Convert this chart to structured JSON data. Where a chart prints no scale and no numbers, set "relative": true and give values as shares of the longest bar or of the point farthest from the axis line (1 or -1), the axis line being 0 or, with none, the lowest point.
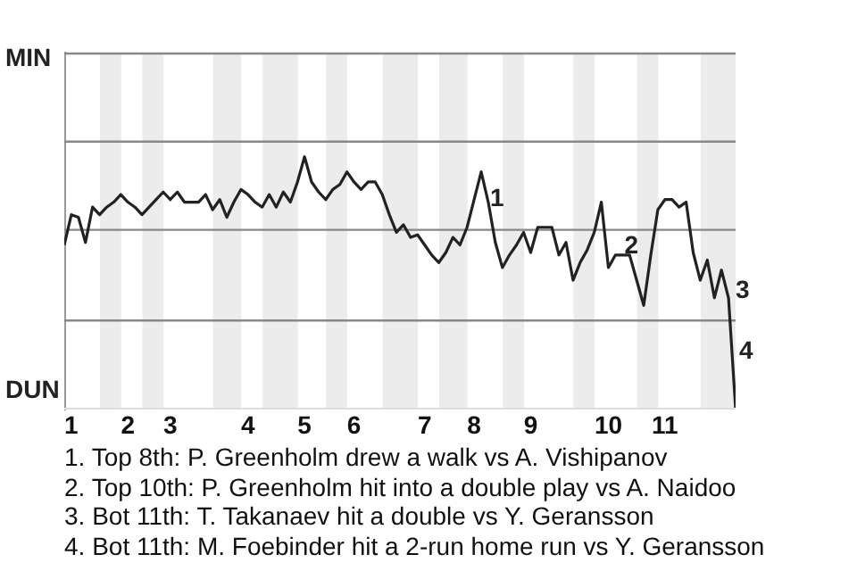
{
  "chart_data": {
    "type": "line",
    "relative": true,
    "categories": [
      null,
      "1",
      null,
      null,
      null,
      null,
      null,
      null,
      null,
      "2",
      null,
      null,
      null,
      null,
      null,
      "3",
      null,
      null,
      null,
      null,
      null,
      null,
      null,
      null,
      null,
      null,
      "4",
      null,
      null,
      null,
      null,
      null,
      null,
      null,
      "5",
      null,
      null,
      null,
      null,
      null,
      null,
      "6",
      null,
      null,
      null,
      null,
      null,
      null,
      null,
      null,
      null,
      "7",
      null,
      null,
      null,
      null,
      null,
      null,
      "8",
      null,
      null,
      null,
      null,
      null,
      null,
      null,
      "9",
      null,
      null,
      null,
      null,
      null,
      null,
      null,
      null,
      null,
      null,
      "10",
      null,
      null,
      null,
      null,
      null,
      null,
      null,
      "11",
      null,
      null,
      null,
      null,
      null,
      null,
      null,
      null,
      null,
      null
    ],
    "series": [
      {
        "color": "#222222",
        "values": [
          0.65,
          0.77,
          0.76,
          0.66,
          0.8,
          0.77,
          0.8,
          0.82,
          0.85,
          0.82,
          0.8,
          0.77,
          0.8,
          0.83,
          0.86,
          0.83,
          0.86,
          0.82,
          0.82,
          0.82,
          0.85,
          0.79,
          0.83,
          0.76,
          0.82,
          0.87,
          0.85,
          0.82,
          0.8,
          0.85,
          0.8,
          0.86,
          0.82,
          0.9,
          1,
          0.9,
          0.86,
          0.83,
          0.87,
          0.89,
          0.94,
          0.9,
          0.87,
          0.9,
          0.9,
          0.85,
          0.77,
          0.7,
          0.73,
          0.68,
          0.69,
          0.65,
          0.61,
          0.58,
          0.62,
          0.68,
          0.65,
          0.72,
          0.83,
          0.94,
          0.82,
          0.66,
          0.56,
          0.61,
          0.65,
          0.7,
          0.62,
          0.72,
          0.72,
          0.72,
          0.61,
          0.66,
          0.51,
          0.58,
          0.63,
          0.7,
          0.82,
          0.56,
          0.61,
          0.61,
          0.61,
          0.51,
          0.41,
          0.61,
          0.79,
          0.83,
          0.83,
          0.8,
          0.82,
          0.62,
          0.51,
          0.59,
          0.44,
          0.55,
          0.44,
          0
        ]
      }
    ],
    "marker": "none",
    "line_style": "solid",
    "ref_lines": [
      {
        "axis": "y",
        "value": 0.35,
        "color": "#888888"
      },
      {
        "axis": "y",
        "value": 0.71,
        "color": "#888888"
      },
      {
        "axis": "y",
        "value": 1.06,
        "color": "#888888"
      },
      {
        "axis": "y",
        "value": 1.41,
        "color": "#888888"
      }
    ],
    "annotations": [
      {
        "text": "1",
        "x": "8",
        "y": 0.84
      },
      {
        "text": "2",
        "x": "10",
        "y": 0.65
      },
      "3",
      "4",
      "MIN",
      "DUN",
      "1. Top 8th: P. Greenholm drew a walk vs A. Vishipanov",
      "2. Top 10th: P. Greenholm hit into a double play vs A. Naidoo",
      "3. Bot 11th: T. Takanaev hit a double vs Y. Geransson",
      "4. Bot 11th: M. Foebinder hit a 2-run home run vs Y. Geransson"
    ]
  }
}
